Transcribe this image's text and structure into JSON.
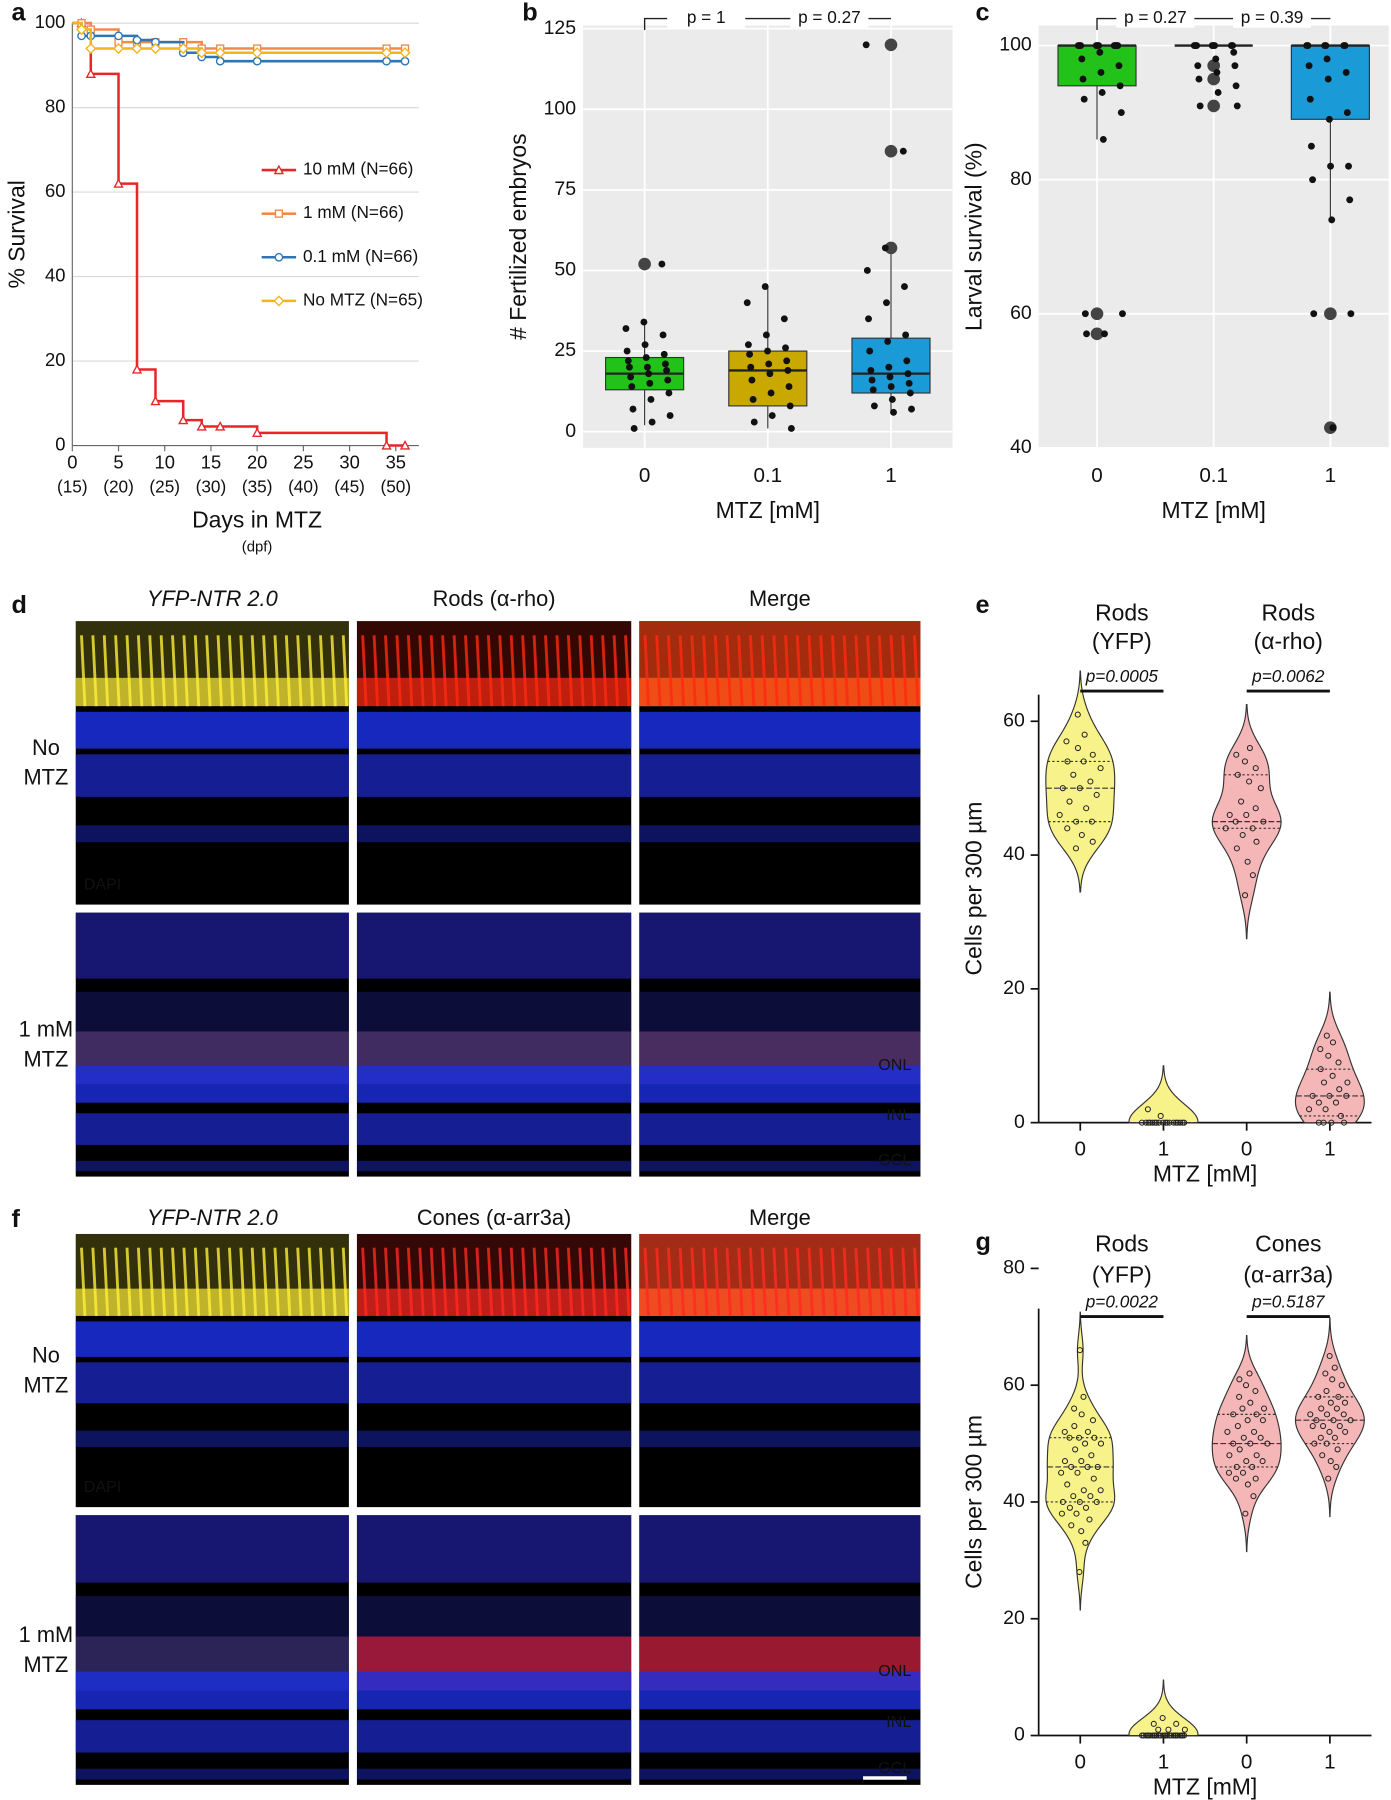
{
  "chart_data": [
    {
      "panel": "a",
      "type": "line",
      "step": true,
      "x_label": "Days in MTZ",
      "x_sublabel": "(dpf)",
      "y_label": "% Survival",
      "x": [
        0,
        1,
        2,
        5,
        7,
        9,
        12,
        14,
        16,
        20,
        34,
        36
      ],
      "series": [
        {
          "name": "10 mM (N=66)",
          "color": "#e8262a",
          "marker": "triangle",
          "values": [
            100,
            100,
            88,
            62,
            18,
            10.5,
            6,
            4.5,
            4.5,
            3,
            0,
            0
          ]
        },
        {
          "name": "1 mM (N=66)",
          "color": "#f08a4b",
          "marker": "square",
          "values": [
            100,
            100,
            98.5,
            95.5,
            95.5,
            95.5,
            95.5,
            94,
            94,
            94,
            94,
            94
          ]
        },
        {
          "name": "0.1 mM (N=66)",
          "color": "#2e75b6",
          "marker": "circle",
          "values": [
            100,
            97,
            97,
            97,
            96,
            95.5,
            93,
            92,
            91,
            91,
            91,
            91
          ]
        },
        {
          "name": "No MTZ (N=65)",
          "color": "#f2b51c",
          "marker": "diamond",
          "values": [
            100,
            98.5,
            94,
            94,
            94,
            94,
            94,
            93,
            93,
            93,
            93,
            93
          ]
        }
      ],
      "xlim": [
        0,
        37.5
      ],
      "xticks": [
        0,
        5,
        10,
        15,
        20,
        25,
        30,
        35
      ],
      "x_sublabels": [
        "(15)",
        "(20)",
        "(25)",
        "(30)",
        "(35)",
        "(40)",
        "(45)",
        "(50)"
      ],
      "ylim": [
        0,
        100
      ],
      "yticks": [
        0,
        20,
        40,
        60,
        80,
        100
      ],
      "grid": true
    },
    {
      "panel": "b",
      "type": "box",
      "x_label": "MTZ [mM]",
      "y_label": "# Fertilized embryos",
      "categories": [
        "0",
        "0.1",
        "1"
      ],
      "colors": [
        "#22c21a",
        "#c9a800",
        "#1a9ad6"
      ],
      "boxes": [
        {
          "whislo": 2,
          "q1": 13,
          "med": 18,
          "q3": 23,
          "whishi": 34
        },
        {
          "whislo": 1,
          "q1": 8,
          "med": 19,
          "q3": 25,
          "whishi": 45
        },
        {
          "whislo": 6,
          "q1": 12,
          "med": 18,
          "q3": 29,
          "whishi": 56
        }
      ],
      "points": [
        [
          1,
          3,
          5,
          7,
          10,
          12,
          14,
          15,
          16,
          17,
          18,
          19,
          20,
          20,
          21,
          22,
          23,
          24,
          25,
          27,
          30,
          32,
          34,
          52
        ],
        [
          1,
          3,
          5,
          8,
          10,
          12,
          14,
          16,
          18,
          19,
          20,
          21,
          22,
          24,
          25,
          26,
          27,
          30,
          35,
          40,
          45
        ],
        [
          6,
          7,
          8,
          10,
          12,
          13,
          14,
          15,
          16,
          17,
          18,
          19,
          20,
          22,
          25,
          28,
          30,
          35,
          40,
          45,
          50,
          57,
          87,
          120
        ]
      ],
      "outliers": [
        [
          52
        ],
        [],
        [
          57,
          87,
          120
        ]
      ],
      "annotations": [
        "p = 1",
        "p = 0.27"
      ],
      "ylim": [
        -5,
        126
      ],
      "yticks": [
        0,
        25,
        50,
        75,
        100,
        125
      ],
      "grid": true
    },
    {
      "panel": "c",
      "type": "box",
      "x_label": "MTZ [mM]",
      "y_label": "Larval survival (%)",
      "categories": [
        "0",
        "0.1",
        "1"
      ],
      "colors": [
        "#22c21a",
        "#c9a800",
        "#1a9ad6"
      ],
      "boxes": [
        {
          "whislo": 86,
          "q1": 94,
          "med": 100,
          "q3": 100,
          "whishi": 100
        },
        {
          "whislo": 100,
          "q1": 100,
          "med": 100,
          "q3": 100,
          "whishi": 100
        },
        {
          "whislo": 74,
          "q1": 89,
          "med": 100,
          "q3": 100,
          "whishi": 100
        }
      ],
      "points": [
        [
          57,
          57,
          60,
          60,
          86,
          90,
          92,
          93,
          94,
          95,
          96,
          97,
          98,
          99,
          100,
          100,
          100,
          100,
          100,
          100,
          100,
          100,
          100,
          100
        ],
        [
          91,
          91,
          93,
          94,
          95,
          96,
          97,
          97,
          98,
          99,
          100,
          100,
          100,
          100,
          100,
          100,
          100,
          100
        ],
        [
          43,
          60,
          60,
          74,
          77,
          80,
          82,
          82,
          85,
          89,
          90,
          92,
          95,
          96,
          97,
          98,
          100,
          100,
          100,
          100,
          100,
          100
        ]
      ],
      "outliers": [
        [
          57,
          60
        ],
        [
          91,
          95,
          97
        ],
        [
          43,
          60
        ]
      ],
      "annotations": [
        "p = 0.27",
        "p = 0.39"
      ],
      "ylim": [
        40,
        103
      ],
      "yticks": [
        40,
        60,
        80,
        100
      ],
      "grid": true
    },
    {
      "panel": "e",
      "type": "violin",
      "x_label": "MTZ [mM]",
      "y_label": "Cells per 300 µm",
      "categories": [
        "0",
        "1",
        "0",
        "1"
      ],
      "group_labels": [
        [
          "Rods",
          "(YFP)"
        ],
        [
          "Rods",
          "(α-rho)"
        ]
      ],
      "colors": [
        "#f7f28a",
        "#f7f28a",
        "#f4b6b6",
        "#f4b6b6"
      ],
      "points": [
        [
          41,
          42,
          43,
          44,
          45,
          45,
          46,
          47,
          48,
          49,
          50,
          50,
          51,
          52,
          53,
          54,
          54,
          55,
          56,
          57,
          58,
          61
        ],
        [
          0,
          0,
          0,
          0,
          0,
          0,
          0,
          0,
          0,
          0,
          0,
          0,
          0,
          0,
          0,
          0,
          0,
          0,
          1,
          2
        ],
        [
          34,
          37,
          39,
          41,
          42,
          43,
          44,
          44,
          45,
          45,
          46,
          46,
          47,
          48,
          50,
          51,
          52,
          53,
          54,
          55,
          56
        ],
        [
          0,
          0,
          0,
          0,
          1,
          2,
          2,
          3,
          3,
          4,
          4,
          4,
          5,
          6,
          6,
          7,
          8,
          9,
          10,
          11,
          12,
          13
        ]
      ],
      "quartiles": [
        [
          45,
          50,
          54
        ],
        [
          0,
          0,
          0
        ],
        [
          44,
          45,
          52
        ],
        [
          1,
          4,
          8
        ]
      ],
      "annotations": [
        "p=0.0005",
        "p=0.0062"
      ],
      "ylim": [
        0,
        70
      ],
      "yticks": [
        0,
        20,
        40,
        60
      ]
    },
    {
      "panel": "g",
      "type": "violin",
      "x_label": "MTZ [mM]",
      "y_label": "Cells per 300 µm",
      "categories": [
        "0",
        "1",
        "0",
        "1"
      ],
      "group_labels": [
        [
          "Rods",
          "(YFP)"
        ],
        [
          "Cones",
          "(α-arr3a)"
        ]
      ],
      "colors": [
        "#f7f28a",
        "#f7f28a",
        "#f4b6b6",
        "#f4b6b6"
      ],
      "points": [
        [
          28,
          33,
          35,
          36,
          37,
          38,
          38,
          39,
          39,
          40,
          40,
          40,
          41,
          41,
          42,
          42,
          43,
          44,
          45,
          45,
          46,
          46,
          46,
          47,
          47,
          48,
          49,
          50,
          50,
          51,
          51,
          51,
          52,
          52,
          53,
          54,
          55,
          56,
          58,
          66
        ],
        [
          0,
          0,
          0,
          0,
          0,
          0,
          0,
          0,
          0,
          0,
          0,
          0,
          0,
          0,
          0,
          0,
          0,
          0,
          0,
          0,
          0,
          0,
          0,
          0,
          0,
          0,
          1,
          1,
          1,
          2,
          2,
          3
        ],
        [
          38,
          41,
          43,
          44,
          44,
          45,
          45,
          46,
          46,
          47,
          47,
          48,
          48,
          49,
          50,
          50,
          50,
          51,
          51,
          52,
          52,
          53,
          54,
          54,
          55,
          55,
          56,
          56,
          57,
          58,
          59,
          60,
          61,
          62
        ],
        [
          44,
          46,
          47,
          48,
          49,
          50,
          50,
          51,
          51,
          52,
          52,
          53,
          53,
          53,
          54,
          54,
          54,
          55,
          55,
          55,
          56,
          56,
          57,
          57,
          58,
          58,
          59,
          60,
          61,
          62,
          63,
          65
        ]
      ],
      "quartiles": [
        [
          40,
          46,
          51
        ],
        [
          0,
          0,
          0
        ],
        [
          46,
          50,
          55
        ],
        [
          50,
          54,
          58
        ]
      ],
      "annotations": [
        "p=0.0022",
        "p=0.5187"
      ],
      "ylim": [
        0,
        80
      ],
      "yticks": [
        0,
        20,
        40,
        60,
        80
      ]
    }
  ],
  "micrographs": [
    {
      "panel": "d",
      "columns": [
        "YFP-NTR 2.0",
        "Rods (α-rho)",
        "Merge"
      ],
      "rows": [
        [
          "No",
          "MTZ"
        ],
        [
          "1 mM",
          "MTZ"
        ]
      ],
      "stain": "DAPI",
      "layers": [
        "ONL",
        "INL",
        "GCL"
      ]
    },
    {
      "panel": "f",
      "columns": [
        "YFP-NTR 2.0",
        "Cones (α-arr3a)",
        "Merge"
      ],
      "rows": [
        [
          "No",
          "MTZ"
        ],
        [
          "1 mM",
          "MTZ"
        ]
      ],
      "stain": "DAPI",
      "layers": [
        "ONL",
        "INL",
        "GCL"
      ]
    }
  ]
}
